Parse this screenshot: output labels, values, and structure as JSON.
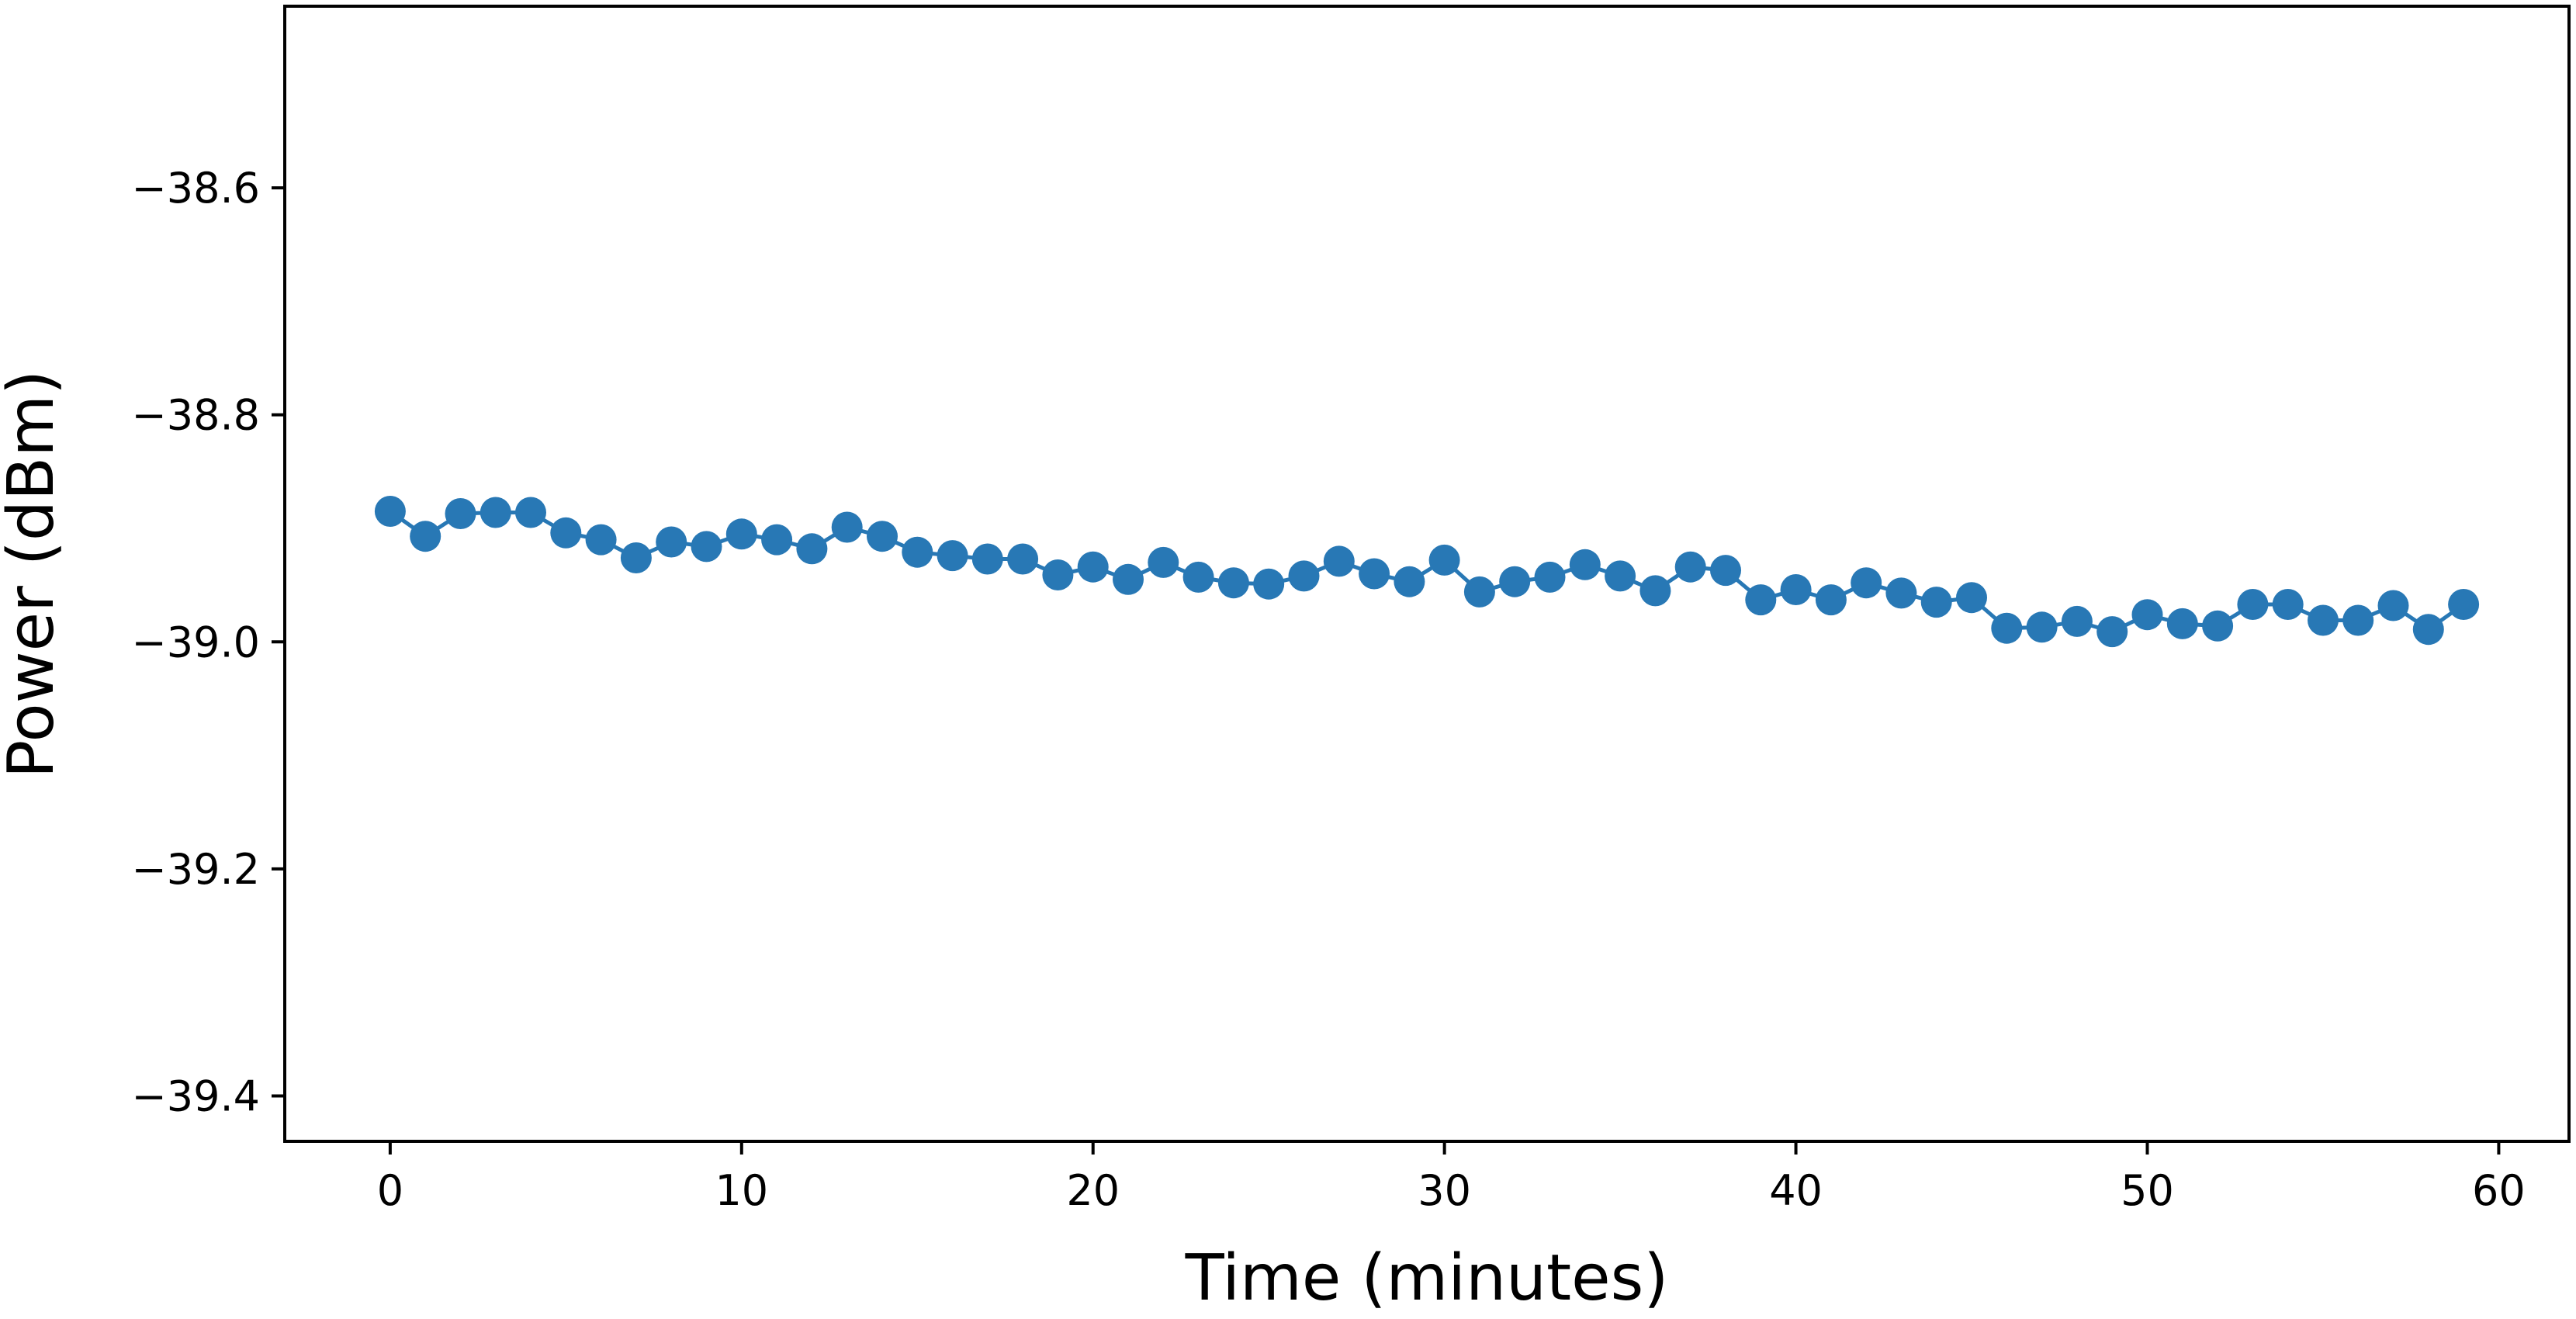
{
  "chart_data": {
    "type": "line",
    "title": "",
    "xlabel": "Time (minutes)",
    "ylabel": "Power (dBm)",
    "xlim": [
      -3,
      62
    ],
    "ylim": [
      -39.44,
      -38.44
    ],
    "xticks": [
      0,
      10,
      20,
      30,
      40,
      50,
      60
    ],
    "yticks": [
      -38.6,
      -38.8,
      -39.0,
      -39.2,
      -39.4
    ],
    "xtick_labels": [
      "0",
      "10",
      "20",
      "30",
      "40",
      "50",
      "60"
    ],
    "ytick_labels": [
      "−38.6",
      "−38.8",
      "−39.0",
      "−39.2",
      "−39.4"
    ],
    "grid": false,
    "legend": "none",
    "marker": "circle",
    "color": "#2878b5",
    "series": [
      {
        "x": [
          0,
          1,
          2,
          3,
          4,
          5,
          6,
          7,
          8,
          9,
          10,
          11,
          12,
          13,
          14,
          15,
          16,
          17,
          18,
          19,
          20,
          21,
          22,
          23,
          24,
          25,
          26,
          27,
          28,
          29,
          30,
          31,
          32,
          33,
          34,
          35,
          36,
          37,
          38,
          39,
          40,
          41,
          42,
          43,
          44,
          45,
          46,
          47,
          48,
          49,
          50,
          51,
          52,
          53,
          54,
          55,
          56,
          57,
          58,
          59
        ],
        "values": [
          -38.885,
          -38.907,
          -38.887,
          -38.886,
          -38.886,
          -38.904,
          -38.91,
          -38.926,
          -38.912,
          -38.916,
          -38.905,
          -38.91,
          -38.918,
          -38.899,
          -38.907,
          -38.921,
          -38.924,
          -38.927,
          -38.927,
          -38.941,
          -38.934,
          -38.945,
          -38.93,
          -38.943,
          -38.948,
          -38.949,
          -38.942,
          -38.929,
          -38.94,
          -38.947,
          -38.928,
          -38.956,
          -38.947,
          -38.943,
          -38.932,
          -38.942,
          -38.955,
          -38.934,
          -38.937,
          -38.963,
          -38.954,
          -38.963,
          -38.948,
          -38.957,
          -38.965,
          -38.961,
          -38.988,
          -38.987,
          -38.982,
          -38.991,
          -38.976,
          -38.984,
          -38.986,
          -38.967,
          -38.967,
          -38.981,
          -38.981,
          -38.968,
          -38.989,
          -38.967
        ]
      }
    ]
  }
}
